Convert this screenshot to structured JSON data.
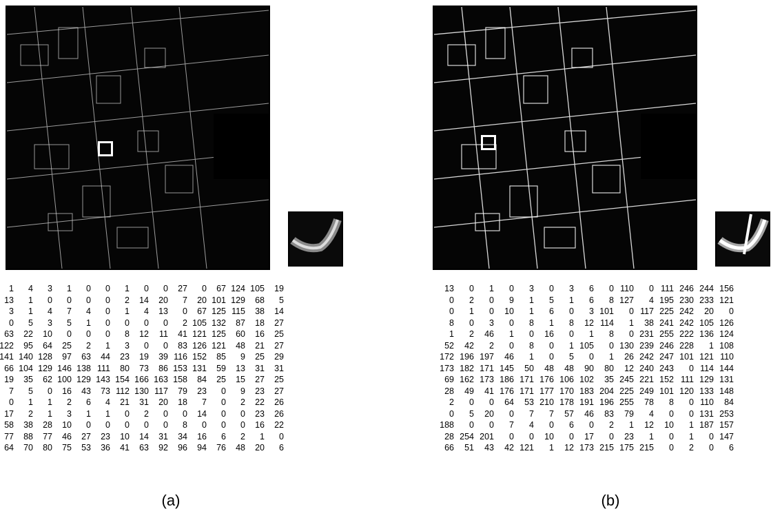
{
  "figure": {
    "panels": [
      {
        "caption": "(a)",
        "matrix": [
          [
            1,
            4,
            3,
            1,
            0,
            0,
            1,
            0,
            0,
            27,
            0,
            67,
            124,
            105,
            19
          ],
          [
            13,
            1,
            0,
            0,
            0,
            0,
            2,
            14,
            20,
            7,
            20,
            101,
            129,
            68,
            5
          ],
          [
            3,
            1,
            4,
            7,
            4,
            0,
            1,
            4,
            13,
            0,
            67,
            125,
            115,
            38,
            14
          ],
          [
            0,
            5,
            3,
            5,
            1,
            0,
            0,
            0,
            0,
            2,
            105,
            132,
            87,
            18,
            27
          ],
          [
            63,
            22,
            10,
            0,
            0,
            0,
            8,
            12,
            11,
            41,
            121,
            125,
            60,
            16,
            25
          ],
          [
            122,
            95,
            64,
            25,
            2,
            1,
            3,
            0,
            0,
            83,
            126,
            121,
            48,
            21,
            27
          ],
          [
            141,
            140,
            128,
            97,
            63,
            44,
            23,
            19,
            39,
            116,
            152,
            85,
            9,
            25,
            29
          ],
          [
            66,
            104,
            129,
            146,
            138,
            111,
            80,
            73,
            86,
            153,
            131,
            59,
            13,
            31,
            31
          ],
          [
            19,
            35,
            62,
            100,
            129,
            143,
            154,
            166,
            163,
            158,
            84,
            25,
            15,
            27,
            25
          ],
          [
            7,
            5,
            0,
            16,
            43,
            73,
            112,
            130,
            117,
            79,
            23,
            0,
            9,
            23,
            27
          ],
          [
            0,
            1,
            1,
            2,
            6,
            4,
            21,
            31,
            20,
            18,
            7,
            0,
            2,
            22,
            26
          ],
          [
            17,
            2,
            1,
            3,
            1,
            1,
            0,
            2,
            0,
            0,
            14,
            0,
            0,
            23,
            26
          ],
          [
            58,
            38,
            28,
            10,
            0,
            0,
            0,
            0,
            0,
            8,
            0,
            0,
            0,
            16,
            22
          ],
          [
            77,
            88,
            77,
            46,
            27,
            23,
            10,
            14,
            31,
            34,
            16,
            6,
            2,
            1,
            0
          ],
          [
            64,
            70,
            80,
            75,
            53,
            36,
            41,
            63,
            92,
            96,
            94,
            76,
            48,
            20,
            6
          ]
        ]
      },
      {
        "caption": "(b)",
        "matrix": [
          [
            13,
            0,
            1,
            0,
            3,
            0,
            3,
            6,
            0,
            110,
            0,
            111,
            246,
            244,
            156
          ],
          [
            0,
            2,
            0,
            9,
            1,
            5,
            1,
            6,
            8,
            127,
            4,
            195,
            230,
            233,
            121
          ],
          [
            0,
            1,
            0,
            10,
            1,
            6,
            0,
            3,
            101,
            0,
            117,
            225,
            242,
            20,
            0
          ],
          [
            8,
            0,
            3,
            0,
            8,
            1,
            8,
            12,
            114,
            1,
            38,
            241,
            242,
            105,
            126
          ],
          [
            1,
            2,
            46,
            1,
            0,
            16,
            0,
            1,
            8,
            0,
            231,
            255,
            222,
            136,
            124
          ],
          [
            52,
            42,
            2,
            0,
            8,
            0,
            1,
            105,
            0,
            130,
            239,
            246,
            228,
            1,
            108
          ],
          [
            172,
            196,
            197,
            46,
            1,
            0,
            5,
            0,
            1,
            26,
            242,
            247,
            101,
            121,
            110
          ],
          [
            173,
            182,
            171,
            145,
            50,
            48,
            48,
            90,
            80,
            12,
            240,
            243,
            0,
            114,
            144
          ],
          [
            69,
            162,
            173,
            186,
            171,
            176,
            106,
            102,
            35,
            245,
            221,
            152,
            111,
            129,
            131
          ],
          [
            28,
            49,
            41,
            176,
            171,
            177,
            170,
            183,
            204,
            225,
            249,
            101,
            120,
            133,
            148
          ],
          [
            2,
            0,
            0,
            64,
            53,
            210,
            178,
            191,
            196,
            255,
            78,
            8,
            0,
            110,
            84
          ],
          [
            0,
            5,
            20,
            0,
            7,
            7,
            57,
            46,
            83,
            79,
            4,
            0,
            0,
            131,
            253
          ],
          [
            188,
            0,
            0,
            7,
            4,
            0,
            6,
            0,
            2,
            1,
            12,
            10,
            1,
            187,
            157
          ],
          [
            28,
            254,
            201,
            0,
            0,
            10,
            0,
            17,
            0,
            23,
            1,
            0,
            1,
            0,
            147
          ],
          [
            66,
            51,
            43,
            42,
            121,
            1,
            12,
            173,
            215,
            175,
            215,
            0,
            2,
            0,
            6
          ]
        ]
      }
    ]
  }
}
